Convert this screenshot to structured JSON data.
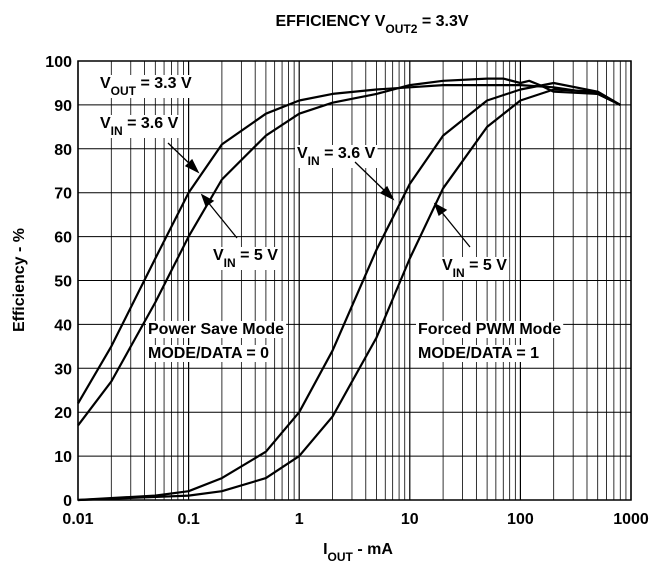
{
  "chart_data": {
    "type": "line",
    "title": {
      "main": "EFFICIENCY V",
      "sub": "OUT2",
      "rest": " = 3.3V"
    },
    "xlabel": {
      "main": "I",
      "sub": "OUT",
      "rest": " - mA"
    },
    "ylabel": "Efficiency - %",
    "xscale": "log",
    "grid": true,
    "xlim": [
      0.01,
      1000
    ],
    "xticks": [
      0.01,
      0.1,
      1,
      10,
      100,
      1000
    ],
    "ylim": [
      0,
      100
    ],
    "yticks": [
      0,
      10,
      20,
      30,
      40,
      50,
      60,
      70,
      80,
      90,
      100
    ],
    "series": [
      {
        "color": "#000000",
        "x": [
          0.01,
          0.02,
          0.05,
          0.1,
          0.2,
          0.5,
          1,
          2,
          5,
          10,
          20,
          50,
          100,
          200,
          500,
          800
        ],
        "values": [
          22,
          35,
          55,
          70,
          81,
          88,
          91,
          92.5,
          93.5,
          94,
          94.5,
          94.5,
          94.5,
          94,
          92.5,
          90
        ]
      },
      {
        "color": "#000000",
        "x": [
          0.01,
          0.02,
          0.05,
          0.1,
          0.2,
          0.5,
          1,
          2,
          5,
          10,
          20,
          50,
          70,
          100,
          120,
          150,
          200,
          500,
          800
        ],
        "values": [
          17,
          27,
          45,
          60,
          73,
          83,
          88,
          90.5,
          92.5,
          94.5,
          95.5,
          96,
          96,
          95,
          95.5,
          94.5,
          93,
          92.5,
          90
        ]
      },
      {
        "color": "#000000",
        "x": [
          0.01,
          0.05,
          0.1,
          0.2,
          0.5,
          1,
          2,
          5,
          10,
          20,
          50,
          100,
          200,
          500,
          800
        ],
        "values": [
          0,
          1,
          2,
          5,
          11,
          20,
          34,
          57,
          72,
          83,
          91,
          93.5,
          95,
          93,
          90
        ]
      },
      {
        "color": "#000000",
        "x": [
          0.01,
          0.1,
          0.2,
          0.5,
          1,
          2,
          5,
          10,
          20,
          50,
          100,
          200,
          500,
          800
        ],
        "values": [
          0,
          1,
          2,
          5,
          10,
          19,
          37,
          55,
          71,
          85,
          91,
          93.5,
          93,
          90
        ]
      }
    ],
    "annotations": [
      {
        "main": "V",
        "sub": "OUT",
        "rest": " = 3.3 V"
      },
      {
        "main": "V",
        "sub": "IN",
        "rest": " = 3.6 V"
      },
      {
        "main": "V",
        "sub": "IN",
        "rest": " = 3.6 V"
      },
      {
        "main": "V",
        "sub": "IN",
        "rest": " = 5 V"
      },
      {
        "main": "V",
        "sub": "IN",
        "rest": " = 5 V"
      },
      {
        "main": "Power Save Mode"
      },
      {
        "main": "MODE/DATA = 0"
      },
      {
        "main": "Forced PWM Mode"
      },
      {
        "main": "MODE/DATA = 1"
      }
    ]
  }
}
